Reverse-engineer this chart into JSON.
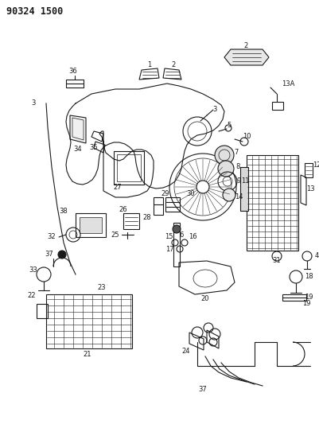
{
  "title": "90324 1500",
  "background_color": "#ffffff",
  "line_color": "#1a1a1a",
  "fig_width": 4.01,
  "fig_height": 5.33,
  "dpi": 100,
  "title_fontsize": 8.5,
  "label_fontsize": 6.0
}
